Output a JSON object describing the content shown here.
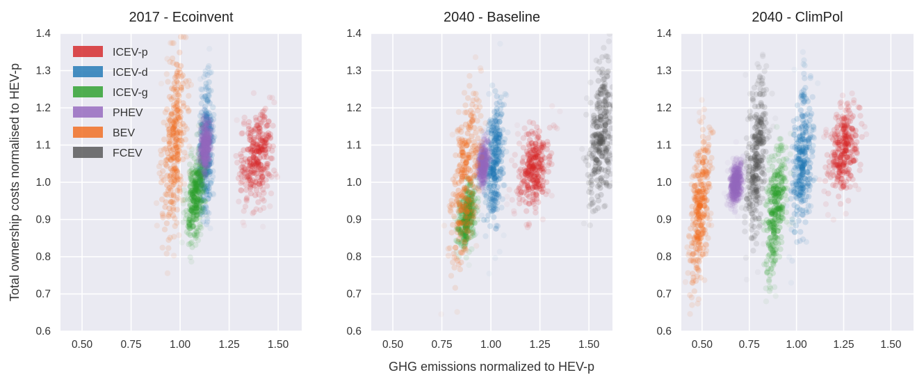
{
  "figure": {
    "ylabel": "Total ownership costs normalised to HEV-p",
    "xlabel": "GHG emissions normalized to HEV-p"
  },
  "chart_data": [
    {
      "type": "scatter",
      "title": "2017 - Ecoinvent",
      "xlim": [
        0.39,
        1.62
      ],
      "ylim": [
        0.6,
        1.4
      ],
      "xticks": [
        "0.50",
        "0.75",
        "1.00",
        "1.25",
        "1.50"
      ],
      "xtick_values": [
        0.5,
        0.75,
        1.0,
        1.25,
        1.5
      ],
      "yticks": [
        "0.6",
        "0.7",
        "0.8",
        "0.9",
        "1.0",
        "1.1",
        "1.2",
        "1.3",
        "1.4"
      ],
      "ytick_values": [
        0.6,
        0.7,
        0.8,
        0.9,
        1.0,
        1.1,
        1.2,
        1.3,
        1.4
      ],
      "grid": true,
      "legend": "top-left",
      "series": [
        {
          "name": "ICEV-p",
          "color": "#d62728",
          "center": [
            1.39,
            1.07
          ],
          "spread": [
            0.045,
            0.065
          ],
          "tilt": 0.2
        },
        {
          "name": "ICEV-d",
          "color": "#1f77b4",
          "center": [
            1.13,
            1.08
          ],
          "spread": [
            0.02,
            0.09
          ],
          "tilt": 0.3
        },
        {
          "name": "ICEV-g",
          "color": "#2ca02c",
          "center": [
            1.08,
            0.97
          ],
          "spread": [
            0.025,
            0.06
          ],
          "tilt": 0.5
        },
        {
          "name": "PHEV",
          "color": "#9467bd",
          "center": [
            1.13,
            1.1
          ],
          "spread": [
            0.015,
            0.035
          ],
          "tilt": 0.3
        },
        {
          "name": "BEV",
          "color": "#f26b1d",
          "center": [
            0.97,
            1.11
          ],
          "spread": [
            0.035,
            0.12
          ],
          "tilt": 0.55
        },
        {
          "name": "FCEV",
          "color": "#555555",
          "center": null,
          "spread": null,
          "tilt": 0
        }
      ]
    },
    {
      "type": "scatter",
      "title": "2040 - Baseline",
      "xlim": [
        0.39,
        1.62
      ],
      "ylim": [
        0.6,
        1.4
      ],
      "xticks": [
        "0.50",
        "0.75",
        "1.00",
        "1.25",
        "1.50"
      ],
      "xtick_values": [
        0.5,
        0.75,
        1.0,
        1.25,
        1.5
      ],
      "yticks": [
        "0.6",
        "0.7",
        "0.8",
        "0.9",
        "1.0",
        "1.1",
        "1.2",
        "1.3",
        "1.4"
      ],
      "ytick_values": [
        0.6,
        0.7,
        0.8,
        0.9,
        1.0,
        1.1,
        1.2,
        1.3,
        1.4
      ],
      "grid": true,
      "series": [
        {
          "name": "ICEV-p",
          "color": "#d62728",
          "center": [
            1.22,
            1.04
          ],
          "spread": [
            0.045,
            0.06
          ],
          "tilt": 0.3
        },
        {
          "name": "ICEV-d",
          "color": "#1f77b4",
          "center": [
            1.02,
            1.06
          ],
          "spread": [
            0.025,
            0.09
          ],
          "tilt": 0.3
        },
        {
          "name": "ICEV-g",
          "color": "#2ca02c",
          "center": [
            0.88,
            0.91
          ],
          "spread": [
            0.025,
            0.045
          ],
          "tilt": 0.4
        },
        {
          "name": "PHEV",
          "color": "#9467bd",
          "center": [
            0.96,
            1.05
          ],
          "spread": [
            0.015,
            0.03
          ],
          "tilt": 0.3
        },
        {
          "name": "BEV",
          "color": "#f26b1d",
          "center": [
            0.87,
            1.0
          ],
          "spread": [
            0.04,
            0.11
          ],
          "tilt": 0.55
        },
        {
          "name": "FCEV",
          "color": "#555555",
          "center": [
            1.56,
            1.12
          ],
          "spread": [
            0.035,
            0.1
          ],
          "tilt": 0.3
        }
      ]
    },
    {
      "type": "scatter",
      "title": "2040 - ClimPol",
      "xlim": [
        0.39,
        1.62
      ],
      "ylim": [
        0.6,
        1.4
      ],
      "xticks": [
        "0.50",
        "0.75",
        "1.00",
        "1.25",
        "1.50"
      ],
      "xtick_values": [
        0.5,
        0.75,
        1.0,
        1.25,
        1.5
      ],
      "yticks": [
        "0.6",
        "0.7",
        "0.8",
        "0.9",
        "1.0",
        "1.1",
        "1.2",
        "1.3",
        "1.4"
      ],
      "ytick_values": [
        0.6,
        0.7,
        0.8,
        0.9,
        1.0,
        1.1,
        1.2,
        1.3,
        1.4
      ],
      "grid": true,
      "series": [
        {
          "name": "ICEV-p",
          "color": "#d62728",
          "center": [
            1.25,
            1.08
          ],
          "spread": [
            0.045,
            0.06
          ],
          "tilt": 0.3
        },
        {
          "name": "ICEV-d",
          "color": "#1f77b4",
          "center": [
            1.03,
            1.06
          ],
          "spread": [
            0.03,
            0.1
          ],
          "tilt": 0.3
        },
        {
          "name": "ICEV-g",
          "color": "#2ca02c",
          "center": [
            0.89,
            0.93
          ],
          "spread": [
            0.03,
            0.08
          ],
          "tilt": 0.5
        },
        {
          "name": "PHEV",
          "color": "#9467bd",
          "center": [
            0.68,
            1.0
          ],
          "spread": [
            0.02,
            0.03
          ],
          "tilt": 0.3
        },
        {
          "name": "BEV",
          "color": "#f26b1d",
          "center": [
            0.49,
            0.93
          ],
          "spread": [
            0.03,
            0.1
          ],
          "tilt": 0.55
        },
        {
          "name": "FCEV",
          "color": "#555555",
          "center": [
            0.79,
            1.06
          ],
          "spread": [
            0.03,
            0.1
          ],
          "tilt": 0.4
        }
      ]
    }
  ]
}
